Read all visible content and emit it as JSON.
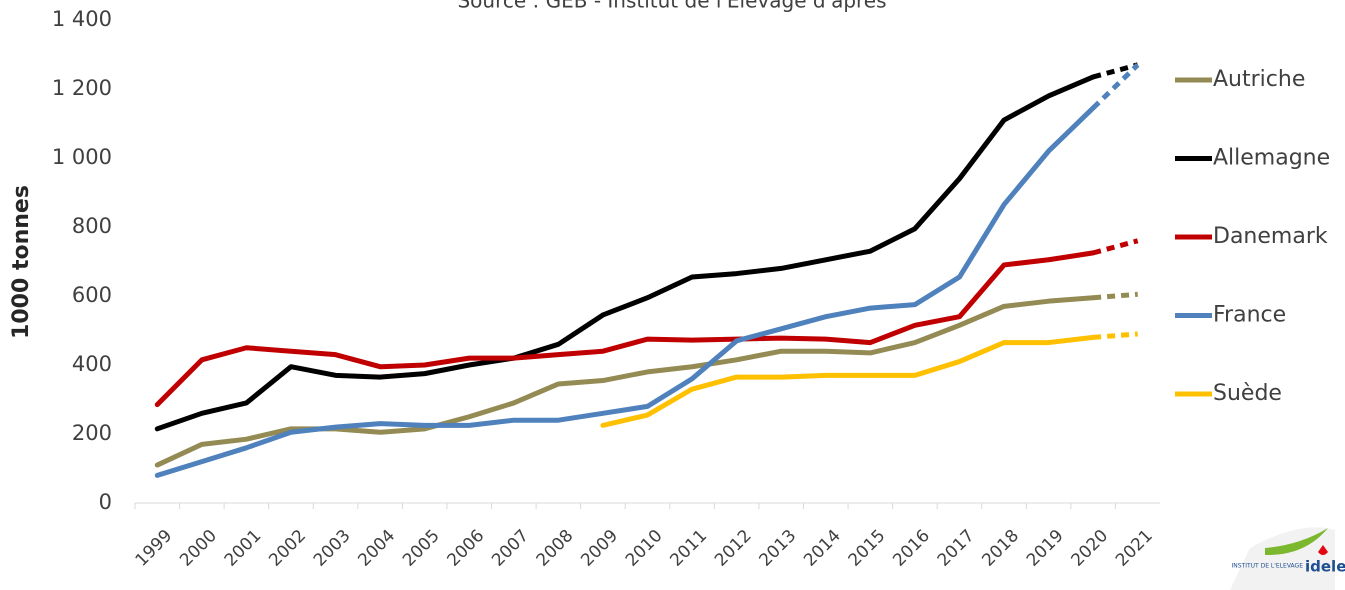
{
  "chart_data": {
    "type": "line",
    "subtitle": "Source : GEB - Institut de l'Elevage d'après",
    "y_label": "1000 tonnes",
    "categories": [
      "1999",
      "2000",
      "2001",
      "2002",
      "2003",
      "2004",
      "2005",
      "2006",
      "2007",
      "2008",
      "2009",
      "2010",
      "2011",
      "2012",
      "2013",
      "2014",
      "2015",
      "2016",
      "2017",
      "2018",
      "2019",
      "2020",
      "2021"
    ],
    "dotted_from": "2020",
    "series": [
      {
        "name": "Autriche",
        "color": "#948a54",
        "values": [
          110,
          170,
          185,
          215,
          215,
          205,
          215,
          250,
          290,
          345,
          355,
          380,
          395,
          415,
          440,
          440,
          435,
          465,
          515,
          570,
          585,
          595,
          605
        ]
      },
      {
        "name": "Allemagne",
        "color": "#000000",
        "values": [
          215,
          260,
          290,
          395,
          370,
          365,
          375,
          400,
          420,
          460,
          545,
          595,
          655,
          665,
          680,
          705,
          730,
          795,
          940,
          1110,
          1180,
          1235,
          1270
        ]
      },
      {
        "name": "Danemark",
        "color": "#c00000",
        "values": [
          285,
          415,
          450,
          440,
          430,
          395,
          400,
          420,
          420,
          430,
          440,
          475,
          472,
          475,
          478,
          475,
          465,
          515,
          540,
          690,
          705,
          725,
          760
        ]
      },
      {
        "name": "France",
        "color": "#4f81bd",
        "values": [
          80,
          120,
          160,
          205,
          220,
          230,
          225,
          225,
          240,
          240,
          260,
          280,
          360,
          470,
          505,
          540,
          565,
          575,
          655,
          865,
          1020,
          1145,
          1270
        ]
      },
      {
        "name": "Suède",
        "color": "#ffc000",
        "values": [
          null,
          null,
          null,
          null,
          null,
          null,
          null,
          null,
          null,
          null,
          225,
          255,
          330,
          365,
          365,
          370,
          370,
          370,
          410,
          465,
          465,
          480,
          490
        ]
      }
    ],
    "ylim": [
      0,
      1400
    ],
    "yticks": [
      0,
      200,
      400,
      600,
      800,
      {
        "value": 1000,
        "label": "1 000"
      },
      {
        "value": 1200,
        "label": "1 200"
      },
      {
        "value": 1400,
        "label": "1 400"
      }
    ],
    "grid": false,
    "legend": "right",
    "logo": {
      "text": "idele",
      "subtext": "INSTITUT DE L'ELEVAGE"
    }
  }
}
